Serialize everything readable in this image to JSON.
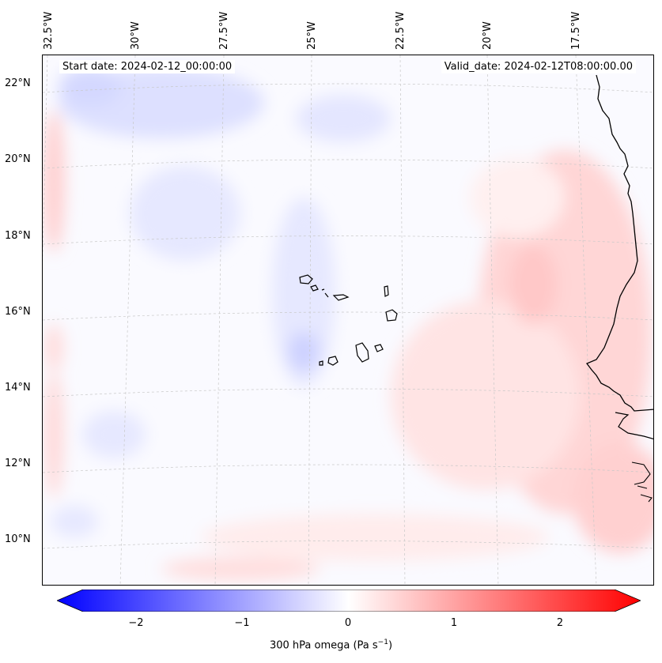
{
  "map": {
    "start_date": "Start date: 2024-02-12_00:00:00",
    "valid_date": "Valid_date: 2024-02-12T08:00:00.00",
    "lon_labels": [
      "32.5°W",
      "30°W",
      "27.5°W",
      "25°W",
      "22.5°W",
      "20°W",
      "17.5°W"
    ],
    "lat_labels": [
      "22°N",
      "20°N",
      "18°N",
      "16°N",
      "14°N",
      "12°N",
      "10°N"
    ],
    "colors": {
      "negative": "#0000ff",
      "positive": "#ff0000",
      "neutral": "#ffffff",
      "coast": "#000000"
    }
  },
  "colorbar": {
    "ticks": [
      "−2",
      "−1",
      "0",
      "1",
      "2"
    ],
    "tick_values": [
      -2,
      -1,
      0,
      1,
      2
    ],
    "min": -2.5,
    "max": 2.5,
    "label": "300 hPa omega (Pa s",
    "label_sup": "−1",
    "label_end": ")"
  }
}
